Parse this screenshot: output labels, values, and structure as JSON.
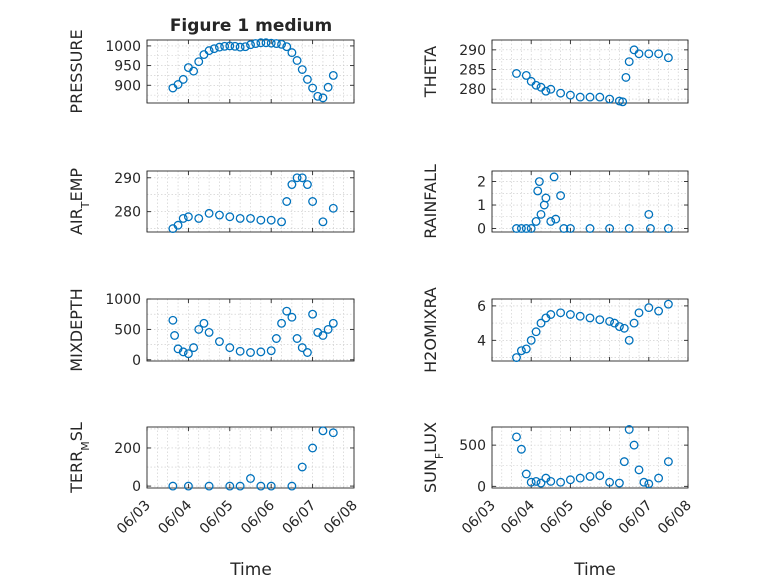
{
  "figure": {
    "title": "Figure 1 medium",
    "time_label": "Time",
    "date_ticks": [
      "06/03",
      "06/04",
      "06/05",
      "06/06",
      "06/07",
      "06/08"
    ]
  },
  "chart_data": [
    {
      "type": "scatter",
      "ylabel": "PRESSURE",
      "xlim": [
        "2019-06-03",
        "2019-06-08"
      ],
      "ylim": [
        855,
        1015
      ],
      "yticks": [
        900,
        950,
        1000
      ],
      "grid": true,
      "marker": "o",
      "color": "#0072bd",
      "x": [
        "06/03 15:00",
        "06/03 18:00",
        "06/03 21:00",
        "06/04 00:00",
        "06/04 03:00",
        "06/04 06:00",
        "06/04 09:00",
        "06/04 12:00",
        "06/04 15:00",
        "06/04 18:00",
        "06/04 21:00",
        "06/05 00:00",
        "06/05 03:00",
        "06/05 06:00",
        "06/05 09:00",
        "06/05 12:00",
        "06/05 15:00",
        "06/05 18:00",
        "06/05 21:00",
        "06/06 00:00",
        "06/06 03:00",
        "06/06 06:00",
        "06/06 09:00",
        "06/06 12:00",
        "06/06 15:00",
        "06/06 18:00",
        "06/06 21:00",
        "06/07 00:00",
        "06/07 03:00",
        "06/07 06:00",
        "06/07 09:00",
        "06/07 12:00"
      ],
      "values": [
        893,
        902,
        915,
        945,
        936,
        960,
        978,
        988,
        993,
        997,
        999,
        1000,
        999,
        997,
        998,
        1003,
        1006,
        1008,
        1008,
        1007,
        1006,
        1004,
        998,
        983,
        963,
        940,
        915,
        893,
        872,
        868,
        895,
        925
      ]
    },
    {
      "type": "scatter",
      "ylabel": "THETA",
      "xlim": [
        "2019-06-03",
        "2019-06-08"
      ],
      "ylim": [
        276.5,
        292.5
      ],
      "yticks": [
        280,
        285,
        290
      ],
      "grid": true,
      "marker": "o",
      "color": "#0072bd",
      "x": [
        "06/03 15:00",
        "06/03 21:00",
        "06/04 00:00",
        "06/04 03:00",
        "06/04 06:00",
        "06/04 09:00",
        "06/04 12:00",
        "06/04 18:00",
        "06/05 00:00",
        "06/05 06:00",
        "06/05 12:00",
        "06/05 18:00",
        "06/06 00:00",
        "06/06 06:00",
        "06/06 08:00",
        "06/06 10:00",
        "06/06 12:00",
        "06/06 15:00",
        "06/06 18:00",
        "06/07 00:00",
        "06/07 06:00",
        "06/07 12:00"
      ],
      "values": [
        284,
        283.5,
        282,
        281,
        280.5,
        279.5,
        280,
        279,
        278.5,
        278,
        278,
        278,
        277.5,
        277,
        276.8,
        283,
        287,
        290,
        289,
        289,
        289,
        288
      ]
    },
    {
      "type": "scatter",
      "ylabel": "AIR_TEMP",
      "xlim": [
        "2019-06-03",
        "2019-06-08"
      ],
      "ylim": [
        274,
        292
      ],
      "yticks": [
        280,
        290
      ],
      "grid": true,
      "marker": "o",
      "color": "#0072bd",
      "x": [
        "06/03 15:00",
        "06/03 18:00",
        "06/03 21:00",
        "06/04 00:00",
        "06/04 06:00",
        "06/04 12:00",
        "06/04 18:00",
        "06/05 00:00",
        "06/05 06:00",
        "06/05 12:00",
        "06/05 18:00",
        "06/06 00:00",
        "06/06 06:00",
        "06/06 09:00",
        "06/06 12:00",
        "06/06 15:00",
        "06/06 18:00",
        "06/06 21:00",
        "06/07 00:00",
        "06/07 06:00",
        "06/07 12:00"
      ],
      "values": [
        275,
        276,
        278,
        278.5,
        278,
        279.5,
        279,
        278.5,
        278,
        278,
        277.5,
        277.5,
        277,
        283,
        288,
        290,
        290,
        288,
        283,
        277,
        281
      ]
    },
    {
      "type": "scatter",
      "ylabel": "RAINFALL",
      "xlim": [
        "2019-06-03",
        "2019-06-08"
      ],
      "ylim": [
        -0.15,
        2.45
      ],
      "yticks": [
        0,
        1,
        2
      ],
      "grid": true,
      "marker": "o",
      "color": "#0072bd",
      "x": [
        "06/03 15:00",
        "06/03 18:00",
        "06/03 21:00",
        "06/04 00:00",
        "06/04 03:00",
        "06/04 04:00",
        "06/04 05:00",
        "06/04 06:00",
        "06/04 08:00",
        "06/04 09:00",
        "06/04 12:00",
        "06/04 14:00",
        "06/04 15:00",
        "06/04 18:00",
        "06/04 20:00",
        "06/05 00:00",
        "06/05 12:00",
        "06/06 00:00",
        "06/06 12:00",
        "06/07 00:00",
        "06/07 01:00",
        "06/07 12:00"
      ],
      "values": [
        0,
        0,
        0,
        0,
        0.3,
        1.6,
        2.0,
        0.6,
        1.0,
        1.3,
        0.3,
        2.2,
        0.4,
        1.4,
        0,
        0,
        0,
        0,
        0,
        0.6,
        0,
        0
      ]
    },
    {
      "type": "scatter",
      "ylabel": "MIXDEPTH",
      "xlim": [
        "2019-06-03",
        "2019-06-08"
      ],
      "ylim": [
        -20,
        1000
      ],
      "yticks": [
        0,
        500,
        1000
      ],
      "grid": true,
      "marker": "o",
      "color": "#0072bd",
      "x": [
        "06/03 15:00",
        "06/03 16:00",
        "06/03 18:00",
        "06/03 21:00",
        "06/04 00:00",
        "06/04 03:00",
        "06/04 06:00",
        "06/04 09:00",
        "06/04 12:00",
        "06/04 18:00",
        "06/05 00:00",
        "06/05 06:00",
        "06/05 12:00",
        "06/05 18:00",
        "06/06 00:00",
        "06/06 03:00",
        "06/06 06:00",
        "06/06 09:00",
        "06/06 12:00",
        "06/06 15:00",
        "06/06 18:00",
        "06/06 21:00",
        "06/07 00:00",
        "06/07 03:00",
        "06/07 06:00",
        "06/07 09:00",
        "06/07 12:00"
      ],
      "values": [
        650,
        400,
        180,
        130,
        100,
        200,
        500,
        600,
        450,
        300,
        200,
        140,
        120,
        130,
        150,
        350,
        600,
        800,
        700,
        350,
        200,
        120,
        750,
        450,
        400,
        500,
        600
      ]
    },
    {
      "type": "scatter",
      "ylabel": "H2OMIXRA",
      "xlim": [
        "2019-06-03",
        "2019-06-08"
      ],
      "ylim": [
        2.8,
        6.4
      ],
      "yticks": [
        4,
        6
      ],
      "grid": true,
      "marker": "o",
      "color": "#0072bd",
      "x": [
        "06/03 15:00",
        "06/03 18:00",
        "06/03 21:00",
        "06/04 00:00",
        "06/04 03:00",
        "06/04 06:00",
        "06/04 09:00",
        "06/04 12:00",
        "06/04 18:00",
        "06/05 00:00",
        "06/05 06:00",
        "06/05 12:00",
        "06/05 18:00",
        "06/06 00:00",
        "06/06 03:00",
        "06/06 06:00",
        "06/06 09:00",
        "06/06 12:00",
        "06/06 15:00",
        "06/06 18:00",
        "06/07 00:00",
        "06/07 06:00",
        "06/07 12:00"
      ],
      "values": [
        3,
        3.4,
        3.5,
        4,
        4.5,
        5,
        5.3,
        5.5,
        5.6,
        5.5,
        5.4,
        5.3,
        5.2,
        5.1,
        5,
        4.8,
        4.7,
        4,
        5,
        5.6,
        5.9,
        5.7,
        6.1
      ]
    },
    {
      "type": "scatter",
      "ylabel": "TERR_MSL",
      "xlim": [
        "2019-06-03",
        "2019-06-08"
      ],
      "ylim": [
        -10,
        310
      ],
      "yticks": [
        0,
        200
      ],
      "grid": true,
      "marker": "o",
      "color": "#0072bd",
      "x": [
        "06/03 15:00",
        "06/04 00:00",
        "06/04 12:00",
        "06/05 00:00",
        "06/05 06:00",
        "06/05 12:00",
        "06/05 18:00",
        "06/06 00:00",
        "06/06 12:00",
        "06/06 18:00",
        "06/07 00:00",
        "06/07 06:00",
        "06/07 12:00"
      ],
      "values": [
        0,
        0,
        0,
        0,
        0,
        40,
        0,
        0,
        0,
        100,
        200,
        290,
        280
      ]
    },
    {
      "type": "scatter",
      "ylabel": "SUN_FLUX",
      "xlim": [
        "2019-06-03",
        "2019-06-08"
      ],
      "ylim": [
        -20,
        720
      ],
      "yticks": [
        0,
        500
      ],
      "grid": true,
      "marker": "o",
      "color": "#0072bd",
      "x": [
        "06/03 15:00",
        "06/03 18:00",
        "06/03 21:00",
        "06/04 00:00",
        "06/04 03:00",
        "06/04 06:00",
        "06/04 09:00",
        "06/04 12:00",
        "06/04 18:00",
        "06/05 00:00",
        "06/05 06:00",
        "06/05 12:00",
        "06/05 18:00",
        "06/06 00:00",
        "06/06 06:00",
        "06/06 09:00",
        "06/06 12:00",
        "06/06 15:00",
        "06/06 18:00",
        "06/06 21:00",
        "06/07 00:00",
        "06/07 06:00",
        "06/07 12:00"
      ],
      "values": [
        600,
        450,
        150,
        50,
        60,
        40,
        100,
        60,
        50,
        80,
        100,
        120,
        130,
        50,
        40,
        300,
        690,
        500,
        200,
        50,
        30,
        100,
        300
      ]
    }
  ]
}
